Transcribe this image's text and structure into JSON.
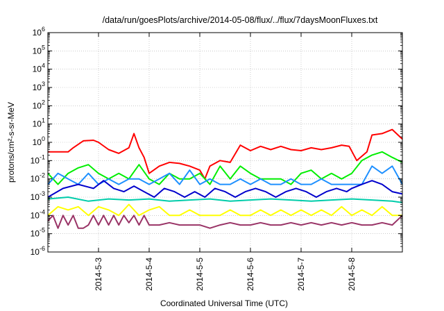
{
  "chart_data": {
    "type": "line",
    "title": "/data/run/goesPlots/archive/2014-05-08/flux/../flux/7daysMoonFluxes.txt",
    "xlabel": "Coordinated Universal Time (UTC)",
    "ylabel": "protons/cm²-s-sr-MeV",
    "y_scale": "log",
    "ylim": [
      1e-06,
      1000000.0
    ],
    "y_ticks": [
      {
        "base": "10",
        "exp": "-6"
      },
      {
        "base": "10",
        "exp": "-5"
      },
      {
        "base": "10",
        "exp": "-4"
      },
      {
        "base": "10",
        "exp": "-3"
      },
      {
        "base": "10",
        "exp": "-2"
      },
      {
        "base": "10",
        "exp": "-1"
      },
      {
        "base": "10",
        "exp": "0"
      },
      {
        "base": "10",
        "exp": "1"
      },
      {
        "base": "10",
        "exp": "2"
      },
      {
        "base": "10",
        "exp": "3"
      },
      {
        "base": "10",
        "exp": "4"
      },
      {
        "base": "10",
        "exp": "5"
      },
      {
        "base": "10",
        "exp": "6"
      }
    ],
    "xlim": [
      2.0,
      9.0
    ],
    "x_ticks": [
      "2014-5-3",
      "2014-5-4",
      "2014-5-5",
      "2014-5-6",
      "2014-5-7",
      "2014-5-8"
    ],
    "x_tick_values": [
      3,
      4,
      5,
      6,
      7,
      8
    ],
    "grid": true,
    "legend": "none",
    "series": [
      {
        "color": "#ff0000",
        "x": [
          2.0,
          2.4,
          2.5,
          2.7,
          2.9,
          3.0,
          3.2,
          3.4,
          3.6,
          3.7,
          3.8,
          3.9,
          4.0,
          4.2,
          4.4,
          4.6,
          4.8,
          5.0,
          5.1,
          5.2,
          5.4,
          5.6,
          5.8,
          6.0,
          6.2,
          6.4,
          6.6,
          6.8,
          7.0,
          7.2,
          7.4,
          7.6,
          7.8,
          7.95,
          8.1,
          8.3,
          8.4,
          8.6,
          8.8,
          9.0
        ],
        "y": [
          0.3,
          0.3,
          0.5,
          1.2,
          1.3,
          1.0,
          0.4,
          0.25,
          0.5,
          3.0,
          0.5,
          0.15,
          0.02,
          0.05,
          0.08,
          0.07,
          0.05,
          0.03,
          0.01,
          0.05,
          0.1,
          0.08,
          0.7,
          0.35,
          0.6,
          0.4,
          0.6,
          0.4,
          0.35,
          0.5,
          0.4,
          0.5,
          0.7,
          0.6,
          0.1,
          0.3,
          2.5,
          3.0,
          5.0,
          1.5
        ]
      },
      {
        "color": "#00ee00",
        "x": [
          2.0,
          2.2,
          2.4,
          2.6,
          2.8,
          3.0,
          3.2,
          3.4,
          3.6,
          3.8,
          4.0,
          4.2,
          4.4,
          4.6,
          4.8,
          5.0,
          5.2,
          5.4,
          5.6,
          5.8,
          6.0,
          6.2,
          6.4,
          6.6,
          6.8,
          7.0,
          7.2,
          7.4,
          7.6,
          7.8,
          8.0,
          8.2,
          8.4,
          8.6,
          8.8,
          9.0
        ],
        "y": [
          0.02,
          0.005,
          0.02,
          0.04,
          0.06,
          0.02,
          0.01,
          0.02,
          0.01,
          0.06,
          0.01,
          0.005,
          0.02,
          0.01,
          0.01,
          0.02,
          0.005,
          0.05,
          0.01,
          0.05,
          0.02,
          0.01,
          0.01,
          0.01,
          0.005,
          0.02,
          0.03,
          0.01,
          0.02,
          0.01,
          0.02,
          0.1,
          0.2,
          0.3,
          0.15,
          0.08
        ]
      },
      {
        "color": "#1e90ff",
        "x": [
          2.0,
          2.2,
          2.4,
          2.6,
          2.8,
          3.0,
          3.2,
          3.4,
          3.6,
          3.8,
          4.0,
          4.2,
          4.4,
          4.6,
          4.8,
          5.0,
          5.2,
          5.4,
          5.6,
          5.8,
          6.0,
          6.2,
          6.4,
          6.6,
          6.8,
          7.0,
          7.2,
          7.4,
          7.6,
          7.8,
          8.0,
          8.2,
          8.4,
          8.6,
          8.8,
          9.0
        ],
        "y": [
          0.005,
          0.02,
          0.01,
          0.005,
          0.02,
          0.005,
          0.01,
          0.005,
          0.01,
          0.01,
          0.005,
          0.01,
          0.02,
          0.005,
          0.03,
          0.005,
          0.01,
          0.005,
          0.005,
          0.01,
          0.005,
          0.01,
          0.005,
          0.005,
          0.01,
          0.005,
          0.005,
          0.01,
          0.005,
          0.005,
          0.005,
          0.005,
          0.05,
          0.02,
          0.05,
          0.005
        ]
      },
      {
        "color": "#0000cc",
        "x": [
          2.0,
          2.3,
          2.6,
          2.9,
          3.1,
          3.3,
          3.5,
          3.7,
          3.9,
          4.1,
          4.3,
          4.5,
          4.7,
          4.9,
          5.1,
          5.3,
          5.5,
          5.7,
          5.9,
          6.1,
          6.3,
          6.5,
          6.7,
          6.9,
          7.1,
          7.3,
          7.5,
          7.7,
          7.9,
          8.0,
          8.2,
          8.4,
          8.6,
          8.8,
          9.0
        ],
        "y": [
          0.001,
          0.003,
          0.005,
          0.003,
          0.008,
          0.003,
          0.002,
          0.004,
          0.002,
          0.001,
          0.003,
          0.002,
          0.001,
          0.002,
          0.001,
          0.003,
          0.002,
          0.001,
          0.002,
          0.003,
          0.002,
          0.001,
          0.002,
          0.003,
          0.002,
          0.001,
          0.002,
          0.003,
          0.002,
          0.003,
          0.005,
          0.008,
          0.005,
          0.002,
          0.0015
        ]
      },
      {
        "color": "#00ccaa",
        "x": [
          2.0,
          2.4,
          2.8,
          3.2,
          3.6,
          4.0,
          4.4,
          4.8,
          5.2,
          5.6,
          6.0,
          6.4,
          6.8,
          7.2,
          7.6,
          8.0,
          8.4,
          8.8,
          9.0
        ],
        "y": [
          0.0008,
          0.001,
          0.0006,
          0.0008,
          0.0007,
          0.0008,
          0.0006,
          0.0007,
          0.0008,
          0.0006,
          0.0007,
          0.0008,
          0.0007,
          0.0006,
          0.0007,
          0.0008,
          0.0007,
          0.0006,
          0.0005
        ]
      },
      {
        "color": "#ffff00",
        "x": [
          2.0,
          2.2,
          2.4,
          2.6,
          2.8,
          3.0,
          3.2,
          3.4,
          3.6,
          3.8,
          4.0,
          4.2,
          4.4,
          4.6,
          4.8,
          5.0,
          5.2,
          5.4,
          5.6,
          5.8,
          6.0,
          6.2,
          6.4,
          6.6,
          6.8,
          7.0,
          7.2,
          7.4,
          7.6,
          7.8,
          8.0,
          8.2,
          8.4,
          8.6,
          8.8,
          9.0
        ],
        "y": [
          0.0001,
          0.0003,
          0.0002,
          0.0003,
          0.0001,
          0.0003,
          0.0002,
          0.0001,
          0.0004,
          0.0001,
          0.0002,
          0.0003,
          0.0001,
          0.0001,
          0.0002,
          0.0001,
          0.0001,
          0.0001,
          0.0002,
          0.0001,
          0.0001,
          0.0002,
          0.0001,
          0.0002,
          0.0001,
          0.0002,
          0.0001,
          0.0002,
          0.0001,
          0.0003,
          0.0001,
          0.0002,
          0.0001,
          0.0003,
          0.0001,
          0.0001
        ]
      },
      {
        "color": "#993366",
        "x": [
          2.0,
          2.1,
          2.2,
          2.3,
          2.4,
          2.5,
          2.6,
          2.7,
          2.8,
          2.9,
          3.0,
          3.1,
          3.2,
          3.3,
          3.4,
          3.5,
          3.6,
          3.7,
          3.8,
          3.9,
          4.0,
          4.2,
          4.4,
          4.6,
          4.8,
          5.0,
          5.2,
          5.4,
          5.6,
          5.8,
          6.0,
          6.2,
          6.4,
          6.6,
          6.8,
          7.0,
          7.2,
          7.4,
          7.6,
          7.8,
          8.0,
          8.2,
          8.4,
          8.6,
          8.8,
          9.0
        ],
        "y": [
          5e-05,
          0.0001,
          2e-05,
          0.0001,
          3e-05,
          0.0001,
          2e-05,
          2e-05,
          3e-05,
          0.0001,
          3e-05,
          0.0001,
          3e-05,
          0.0001,
          3e-05,
          0.0001,
          4e-05,
          0.0001,
          3e-05,
          0.0001,
          3e-05,
          3e-05,
          4e-05,
          3e-05,
          3e-05,
          3e-05,
          2e-05,
          3e-05,
          4e-05,
          3e-05,
          3e-05,
          4e-05,
          3e-05,
          3e-05,
          4e-05,
          3e-05,
          4e-05,
          3e-05,
          4e-05,
          3e-05,
          4e-05,
          3e-05,
          3e-05,
          4e-05,
          3e-05,
          0.0001
        ]
      }
    ]
  }
}
